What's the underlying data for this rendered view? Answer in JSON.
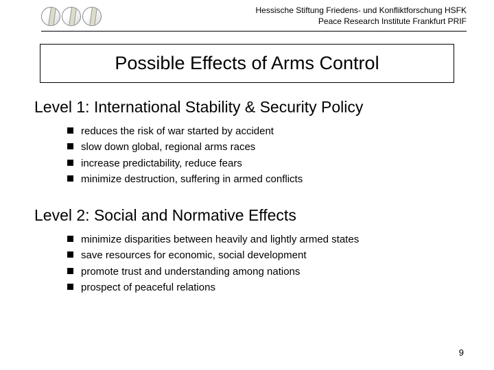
{
  "header": {
    "line1": "Hessische Stiftung Friedens- und Konfliktforschung HSFK",
    "line2": "Peace Research Institute Frankfurt PRIF"
  },
  "title": "Possible Effects of Arms Control",
  "section1": {
    "heading": "Level 1: International Stability & Security Policy",
    "items": [
      "reduces the risk of war started by accident",
      "slow down global, regional arms races",
      "increase predictability, reduce fears",
      "minimize destruction, suffering in armed conflicts"
    ]
  },
  "section2": {
    "heading": "Level 2: Social and Normative Effects",
    "items": [
      "minimize disparities between heavily and lightly armed states",
      "save resources for economic, social development",
      "promote trust and understanding among nations",
      "prospect of peaceful relations"
    ]
  },
  "pageNumber": "9",
  "colors": {
    "background": "#ffffff",
    "text": "#000000",
    "border": "#000000"
  }
}
